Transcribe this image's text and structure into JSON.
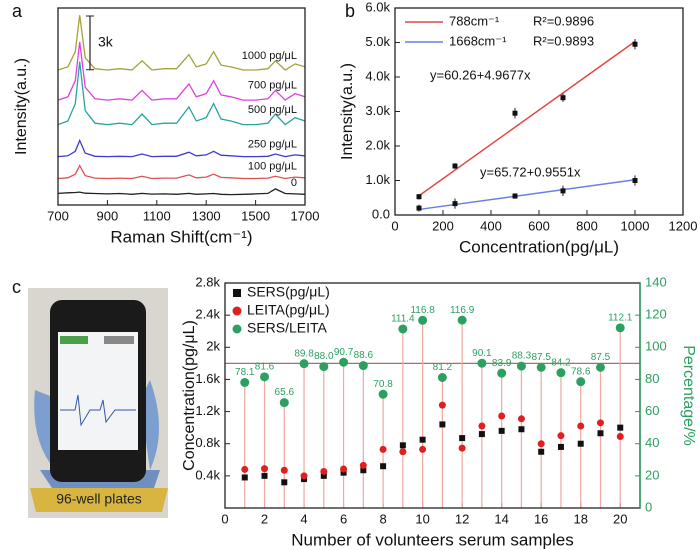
{
  "chart_data": [
    {
      "type": "line",
      "panel_label": "a",
      "x_label": "Raman Shift(cm⁻¹)",
      "y_label": "Intensity(a.u.)",
      "xlim": [
        700,
        1700
      ],
      "xticks": [
        700,
        900,
        1100,
        1300,
        1500,
        1700
      ],
      "ylim": [
        0,
        11000
      ],
      "scale_bar": {
        "value": 3000,
        "label": "3k"
      },
      "x": [
        700,
        740,
        770,
        788,
        810,
        850,
        900,
        950,
        1000,
        1040,
        1080,
        1130,
        1180,
        1230,
        1260,
        1300,
        1330,
        1360,
        1400,
        1450,
        1500,
        1550,
        1580,
        1620,
        1660,
        1700
      ],
      "series": [
        {
          "name": "1000 pg/μL",
          "color": "#a3a23c",
          "values": [
            7540,
            7710,
            8560,
            10600,
            8220,
            7610,
            7540,
            7610,
            7540,
            8050,
            7540,
            7610,
            7610,
            8390,
            7710,
            7880,
            8560,
            7810,
            7710,
            7540,
            7540,
            7610,
            8050,
            7540,
            7880,
            7710
          ]
        },
        {
          "name": "700 pg/μL",
          "color": "#e040e0",
          "values": [
            5860,
            6040,
            6940,
            9100,
            6580,
            5930,
            5860,
            5930,
            5860,
            6400,
            5860,
            5930,
            5930,
            6760,
            6040,
            6220,
            6940,
            6150,
            6040,
            5860,
            5860,
            5930,
            6400,
            5860,
            6220,
            6040
          ]
        },
        {
          "name": "500 pg/μL",
          "color": "#2aa3a0",
          "values": [
            4490,
            4690,
            5660,
            8000,
            5270,
            4570,
            4490,
            4570,
            4490,
            5080,
            4490,
            4570,
            4570,
            5470,
            4690,
            4880,
            5660,
            4800,
            4690,
            4490,
            4490,
            4570,
            5080,
            4490,
            4880,
            4690
          ]
        },
        {
          "name": "250 pg/μL",
          "color": "#3b3bd6",
          "values": [
            2700,
            2750,
            3000,
            3600,
            2900,
            2720,
            2700,
            2720,
            2700,
            2850,
            2700,
            2720,
            2720,
            2950,
            2750,
            2800,
            3000,
            2780,
            2750,
            2700,
            2700,
            2720,
            2850,
            2700,
            2800,
            2750
          ]
        },
        {
          "name": "100 pg/μL",
          "color": "#e05050",
          "values": [
            1480,
            1520,
            1720,
            2200,
            1640,
            1500,
            1480,
            1500,
            1480,
            1600,
            1480,
            1500,
            1500,
            1680,
            1520,
            1560,
            1720,
            1540,
            1520,
            1480,
            1480,
            1500,
            1600,
            1480,
            1560,
            1520
          ]
        },
        {
          "name": "0",
          "color": "#222222",
          "values": [
            650,
            680,
            700,
            720,
            660,
            640,
            620,
            640,
            600,
            650,
            610,
            620,
            600,
            650,
            600,
            620,
            640,
            600,
            580,
            600,
            620,
            650,
            900,
            640,
            620,
            600
          ]
        }
      ]
    },
    {
      "type": "scatter",
      "panel_label": "b",
      "x_label": "Concentration(pg/μL)",
      "y_label": "Intensity(a.u.)",
      "xlim": [
        0,
        1200
      ],
      "xticks": [
        0,
        200,
        400,
        600,
        800,
        1000,
        1200
      ],
      "ylim": [
        0,
        6000
      ],
      "yticks": [
        {
          "value": 0,
          "label": "0.0"
        },
        {
          "value": 1000,
          "label": "1.0k"
        },
        {
          "value": 2000,
          "label": "2.0k"
        },
        {
          "value": 3000,
          "label": "3.0k"
        },
        {
          "value": 4000,
          "label": "4.0k"
        },
        {
          "value": 5000,
          "label": "5.0k"
        },
        {
          "value": 6000,
          "label": "6.0k"
        }
      ],
      "x": [
        100,
        250,
        500,
        700,
        1000
      ],
      "series": [
        {
          "name": "788cm⁻¹",
          "r2_label": "R²=0.9896",
          "color": "#e04848",
          "values": [
            530,
            1420,
            2950,
            3400,
            4950
          ],
          "errors": [
            80,
            80,
            150,
            120,
            150
          ],
          "fit": {
            "intercept": 60.26,
            "slope": 4.9677,
            "label": "y=60.26+4.9677x"
          }
        },
        {
          "name": "1668cm⁻¹",
          "r2_label": "R²=0.9893",
          "color": "#6a7fe0",
          "values": [
            200,
            330,
            550,
            700,
            1000
          ],
          "errors": [
            100,
            150,
            80,
            150,
            150
          ],
          "fit": {
            "intercept": 65.72,
            "slope": 0.9551,
            "label": "y=65.72+0.9551x"
          }
        }
      ]
    },
    {
      "type": "scatter",
      "panel_label": "c",
      "x_label": "Number of volunteers serum samples",
      "y_label": "Concentration(pg/μL)",
      "y2_label": "Percentage/%",
      "xlim": [
        0,
        21
      ],
      "xticks": [
        0,
        2,
        4,
        6,
        8,
        10,
        12,
        14,
        16,
        18,
        20
      ],
      "ylim": [
        0,
        2800
      ],
      "yticks": [
        {
          "value": 400,
          "label": "0.4k"
        },
        {
          "value": 800,
          "label": "0.8k"
        },
        {
          "value": 1200,
          "label": "1.2k"
        },
        {
          "value": 1600,
          "label": "1.6k"
        },
        {
          "value": 2000,
          "label": "2k"
        },
        {
          "value": 2400,
          "label": "2.4k"
        },
        {
          "value": 2800,
          "label": "2.8k"
        }
      ],
      "y2lim": [
        0,
        140
      ],
      "y2ticks": [
        0,
        20,
        40,
        60,
        80,
        100,
        120,
        140
      ],
      "reference_line": 1800,
      "x": [
        1,
        2,
        3,
        4,
        5,
        6,
        7,
        8,
        9,
        10,
        11,
        12,
        13,
        14,
        15,
        16,
        17,
        18,
        19,
        20
      ],
      "series": [
        {
          "name": "SERS(pg/μL)",
          "color": "#111111",
          "marker": "square",
          "values": [
            380,
            400,
            320,
            360,
            400,
            440,
            470,
            520,
            780,
            850,
            1040,
            870,
            920,
            960,
            980,
            700,
            760,
            800,
            930,
            1000
          ]
        },
        {
          "name": "LEITA(pg/μL)",
          "color": "#e02020",
          "marker": "circle",
          "values": [
            480,
            490,
            470,
            400,
            455,
            485,
            530,
            730,
            700,
            730,
            1280,
            745,
            1020,
            1145,
            1110,
            800,
            900,
            1020,
            1060,
            890
          ]
        },
        {
          "name": "SERS/LEITA",
          "color": "#2ca060",
          "marker": "circle",
          "axis": "y2",
          "values": [
            78.1,
            81.6,
            65.6,
            89.8,
            88,
            90.7,
            88.6,
            70.8,
            111.4,
            116.8,
            81.2,
            116.9,
            90.1,
            83.9,
            88.3,
            87.5,
            84.2,
            78.6,
            87.5,
            112.1
          ],
          "value_labels": [
            "78.1",
            "81.6",
            "65.6",
            "89.8",
            "88.0",
            "90.7",
            "88.6",
            "70.8",
            "111.4",
            "116.8",
            "81.2",
            "116.9",
            "90.1",
            "83.9",
            "88.3",
            "87.5",
            "84.2",
            "78.6",
            "87.5",
            "112.1"
          ]
        }
      ]
    }
  ],
  "photo": {
    "caption": "96-well plates"
  }
}
